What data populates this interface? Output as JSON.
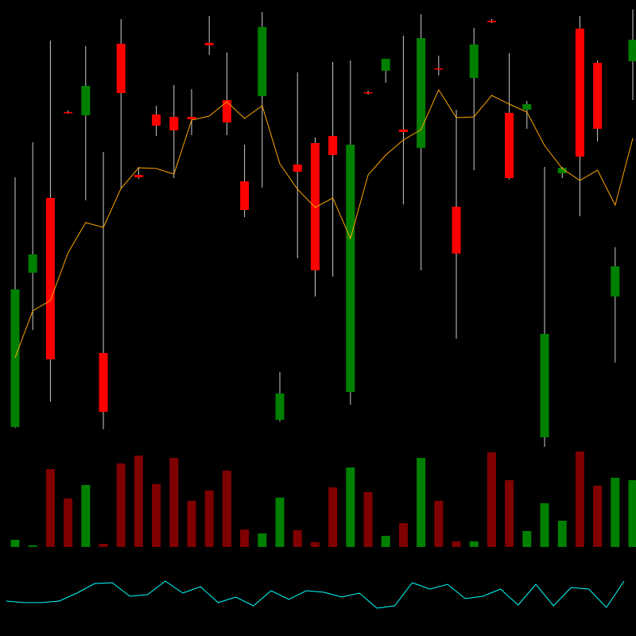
{
  "chart_data": [
    {
      "type": "candlestick",
      "open": [
        23,
        217,
        311,
        419,
        415,
        116,
        505,
        340,
        416,
        413,
        413,
        506,
        434,
        332,
        439,
        32,
        353,
        380,
        389,
        67,
        444,
        471,
        397,
        374,
        474,
        300,
        462,
        534,
        418,
        422,
        10,
        342,
        524,
        481,
        187,
        483
      ],
      "high": [
        337,
        381,
        509,
        421,
        502,
        369,
        536,
        350,
        427,
        453,
        448,
        540,
        494,
        378,
        545,
        92,
        469,
        387,
        482,
        484,
        446,
        486,
        515,
        542,
        490,
        422,
        525,
        536,
        493,
        433,
        350,
        350,
        540,
        484,
        249,
        548
      ],
      "low": [
        22,
        145,
        55,
        417,
        308,
        20,
        323,
        335,
        389,
        336,
        390,
        491,
        390,
        287,
        324,
        30,
        235,
        187,
        212,
        51,
        441,
        456,
        303,
        220,
        465,
        134,
        346,
        531,
        334,
        398,
        -2,
        336,
        288,
        382,
        104,
        434
      ],
      "close": [
        196,
        240,
        108,
        418,
        452,
        42,
        443,
        337,
        402,
        396,
        410,
        503,
        406,
        296,
        526,
        65,
        344,
        220,
        365,
        378,
        443,
        486,
        394,
        512,
        473,
        241,
        504,
        532,
        336,
        429,
        140,
        349,
        363,
        398,
        225,
        510
      ],
      "up_color": "#008000",
      "down_color": "#ff0000",
      "wick_color": "#cccccc",
      "ylim": [
        -10,
        550
      ],
      "line": {
        "color": "#ffa500",
        "values": [
          110,
          169,
          182,
          242,
          280,
          274,
          323,
          349,
          348,
          341,
          409,
          414,
          432,
          411,
          427,
          354,
          322,
          299,
          311,
          260,
          340,
          365,
          384,
          397,
          447,
          412,
          413,
          440,
          429,
          419,
          377,
          348,
          333,
          346,
          302,
          386
        ]
      }
    },
    {
      "type": "bar",
      "values": [
        9,
        2,
        98,
        61,
        78,
        4,
        105,
        115,
        79,
        112,
        58,
        71,
        96,
        22,
        17,
        62,
        21,
        6,
        75,
        100,
        69,
        14,
        30,
        112,
        58,
        7,
        7,
        119,
        84,
        20,
        55,
        33,
        120,
        77,
        87,
        84
      ],
      "up_color": "#008000",
      "down_color": "#800000",
      "ylim": [
        0,
        123
      ]
    },
    {
      "type": "line",
      "values": [
        14,
        12,
        12,
        14,
        24,
        36,
        37,
        20,
        22,
        39,
        24,
        32,
        12,
        19,
        8,
        27,
        16,
        27,
        25,
        19,
        24,
        5,
        8,
        37,
        29,
        35,
        17,
        20,
        29,
        9,
        35,
        8,
        31,
        29,
        6,
        39
      ],
      "color": "#00ffff",
      "ylim": [
        0,
        50
      ]
    }
  ]
}
